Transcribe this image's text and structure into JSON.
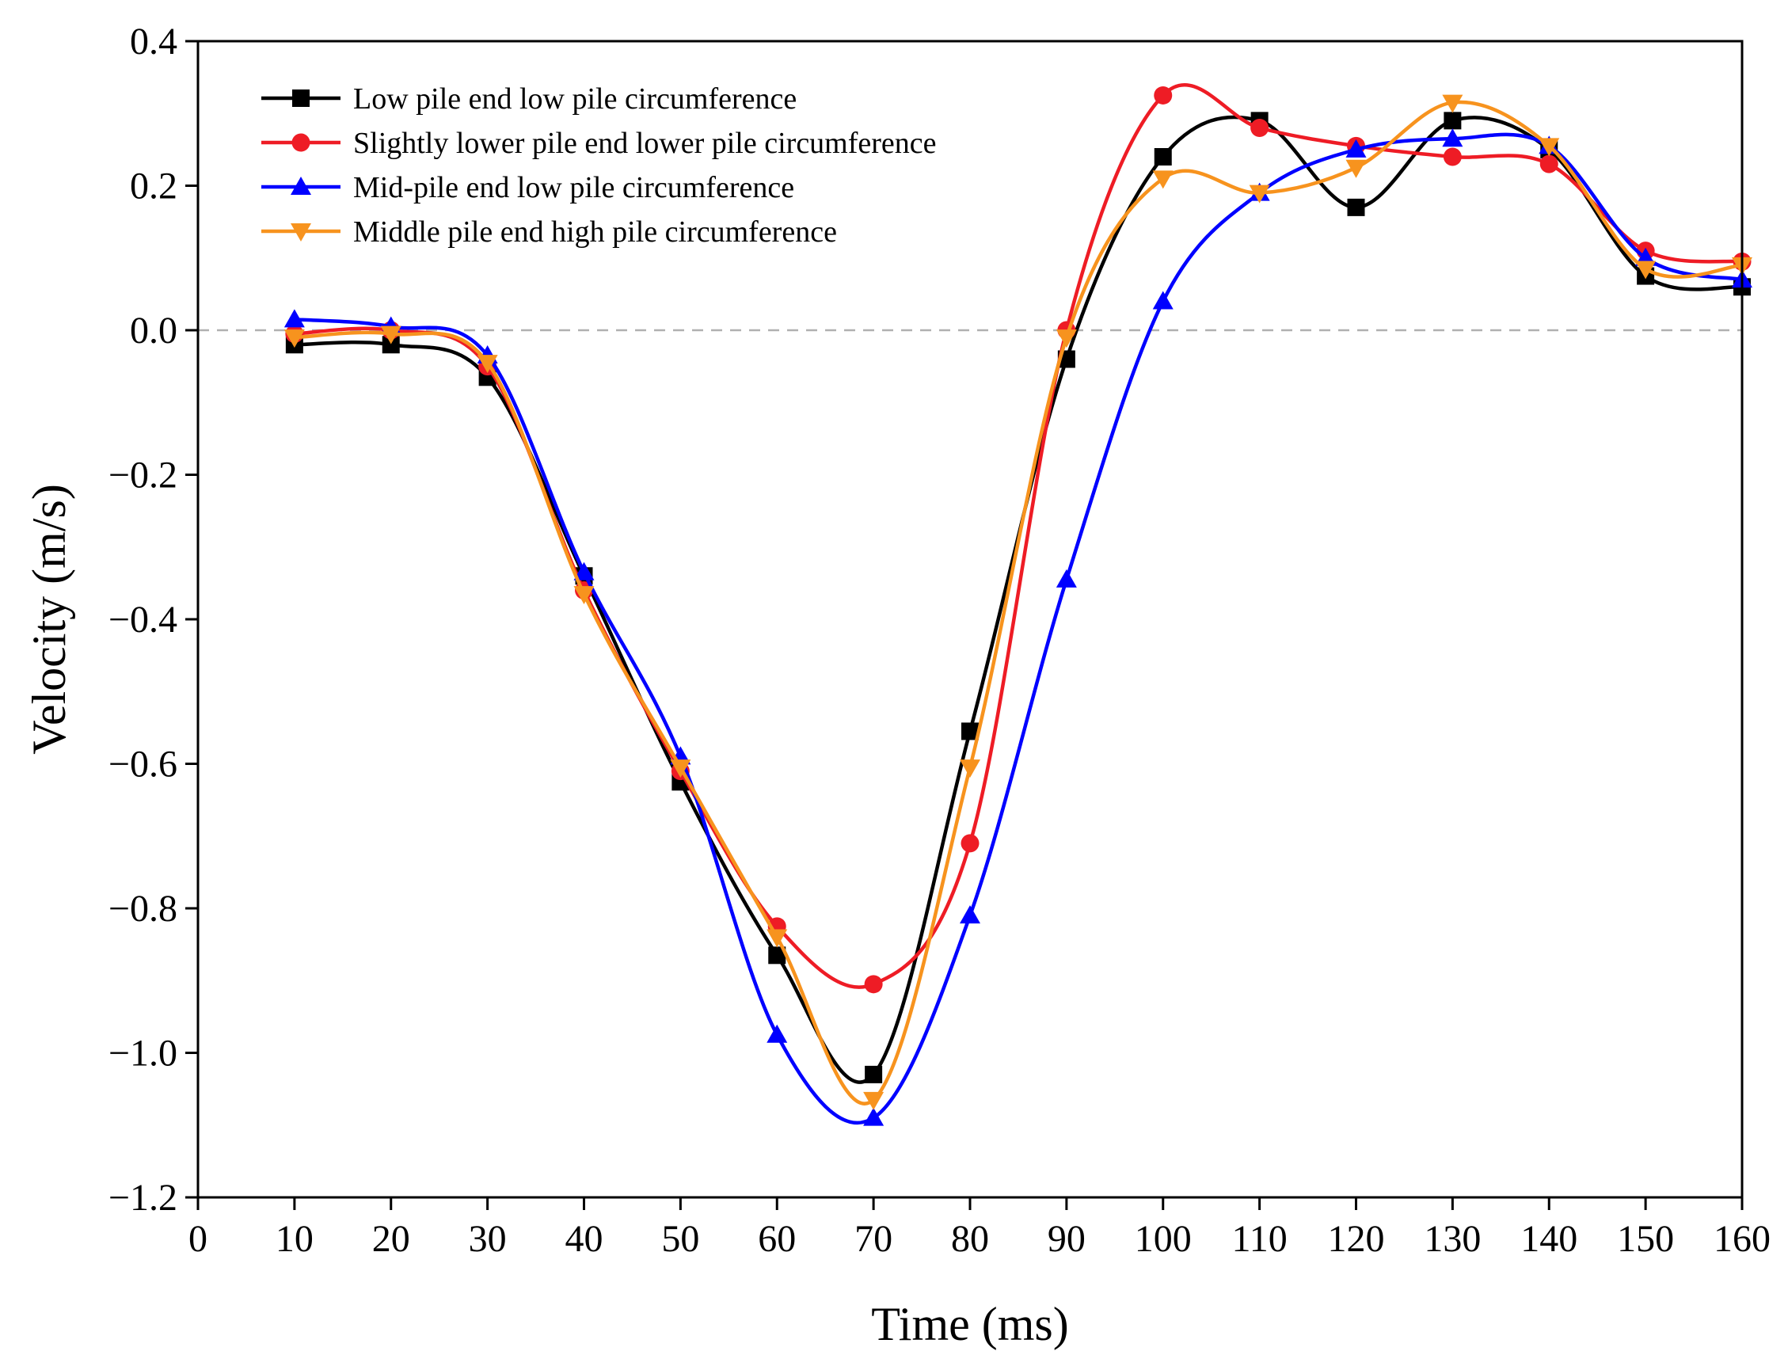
{
  "chart_data": {
    "type": "line",
    "title": "",
    "xlabel": "Time (ms)",
    "ylabel": "Velocity (m/s)",
    "xlim": [
      0,
      160
    ],
    "ylim": [
      -1.2,
      0.4
    ],
    "xticks": [
      0,
      10,
      20,
      30,
      40,
      50,
      60,
      70,
      80,
      90,
      100,
      110,
      120,
      130,
      140,
      150,
      160
    ],
    "xtick_labels": [
      "0",
      "10",
      "20",
      "30",
      "40",
      "50",
      "60",
      "70",
      "80",
      "90",
      "100",
      "110",
      "120",
      "130",
      "140",
      "150",
      "160"
    ],
    "yticks": [
      0.4,
      0.2,
      0.0,
      -0.2,
      -0.4,
      -0.6,
      -0.8,
      -1.0,
      -1.2
    ],
    "ytick_labels": [
      "0.4",
      "0.2",
      "0.0",
      "−0.2",
      "−0.4",
      "−0.6",
      "−0.8",
      "−1.0",
      "−1.2"
    ],
    "reference_line": {
      "y": 0.0,
      "style": "dashed",
      "color": "#b0b0b0"
    },
    "legend_position": "top-left",
    "grid": false,
    "x": [
      10,
      20,
      30,
      40,
      50,
      60,
      70,
      80,
      90,
      100,
      110,
      120,
      130,
      140,
      150,
      160
    ],
    "series": [
      {
        "name": "Low pile end low pile circumference",
        "color": "#000000",
        "marker": "square",
        "values": [
          -0.02,
          -0.02,
          -0.065,
          -0.34,
          -0.625,
          -0.865,
          -1.03,
          -0.555,
          -0.04,
          0.24,
          0.29,
          0.17,
          0.29,
          0.25,
          0.075,
          0.06
        ]
      },
      {
        "name": "Slightly lower pile end lower pile circumference",
        "color": "#ee1c25",
        "marker": "circle",
        "values": [
          -0.005,
          0.0,
          -0.05,
          -0.36,
          -0.61,
          -0.825,
          -0.905,
          -0.71,
          0.0,
          0.325,
          0.28,
          0.255,
          0.24,
          0.23,
          0.11,
          0.095
        ]
      },
      {
        "name": "Mid-pile end low pile circumference",
        "color": "#0000ff",
        "marker": "triangle-up",
        "values": [
          0.015,
          0.005,
          -0.035,
          -0.335,
          -0.59,
          -0.975,
          -1.09,
          -0.81,
          -0.345,
          0.04,
          0.19,
          0.25,
          0.265,
          0.255,
          0.1,
          0.07
        ]
      },
      {
        "name": "Middle pile end high pile circumference",
        "color": "#f7931e",
        "marker": "triangle-down",
        "values": [
          -0.01,
          -0.005,
          -0.045,
          -0.365,
          -0.605,
          -0.84,
          -1.065,
          -0.605,
          -0.01,
          0.21,
          0.19,
          0.225,
          0.315,
          0.255,
          0.085,
          0.09
        ]
      }
    ]
  }
}
